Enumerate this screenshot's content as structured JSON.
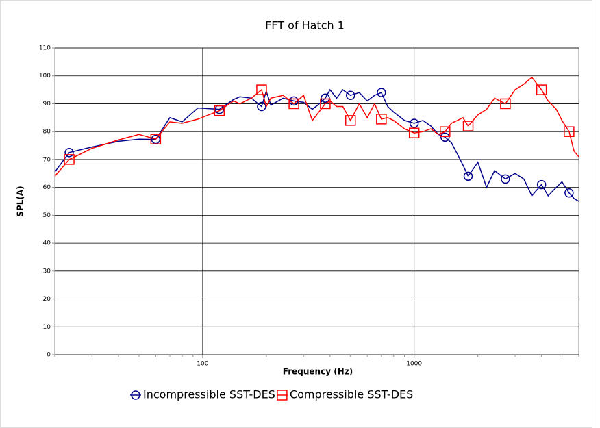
{
  "chart_data": {
    "type": "line",
    "title": "FFT of Hatch 1",
    "xlabel": "Frequency (Hz)",
    "ylabel": "SPL(A)",
    "xscale": "log",
    "x": [
      20,
      23.4,
      30,
      40,
      50,
      60,
      70,
      80,
      95,
      120,
      140,
      150,
      170,
      190,
      200,
      210,
      240,
      270,
      300,
      330,
      350,
      380,
      400,
      430,
      460,
      500,
      550,
      600,
      650,
      700,
      750,
      800,
      900,
      1000,
      1100,
      1200,
      1300,
      1400,
      1500,
      1600,
      1700,
      1800,
      2000,
      2200,
      2400,
      2700,
      3000,
      3300,
      3600,
      4000,
      4300,
      4700,
      5000,
      5400,
      5700,
      6000
    ],
    "series": [
      {
        "name": "Incompressible SST-DES",
        "color": "#00008b",
        "marker": "circle",
        "values": [
          65.5,
          72.5,
          74.5,
          76.5,
          77.3,
          77.2,
          85,
          83.5,
          88.5,
          88,
          91.5,
          92.5,
          92,
          89,
          94.5,
          89.5,
          92,
          91,
          90.5,
          88,
          89.5,
          92,
          95,
          92,
          95,
          93,
          94,
          91,
          93,
          94,
          89,
          87,
          84,
          83,
          84,
          82,
          79,
          78,
          76,
          72,
          68,
          64,
          69,
          60,
          66,
          63,
          65,
          63,
          57,
          61,
          57,
          60,
          62,
          58,
          56,
          55
        ]
      },
      {
        "name": "Compressible SST-DES",
        "color": "#ff0000",
        "marker": "square",
        "values": [
          64,
          70,
          74,
          77,
          79,
          77.3,
          83.5,
          83,
          84.5,
          87.5,
          91,
          90,
          92,
          95,
          89,
          92,
          93,
          90,
          93,
          84,
          86.5,
          90,
          91,
          89,
          89,
          84,
          90,
          85,
          90,
          84.5,
          85,
          84,
          81,
          79.5,
          80,
          81,
          79,
          80,
          83,
          84,
          85,
          82,
          86,
          88,
          92,
          90,
          95,
          97,
          99.5,
          95,
          91,
          88,
          84,
          80,
          73,
          71
        ]
      }
    ],
    "xlim": [
      20,
      6000
    ],
    "ylim": [
      0,
      110
    ],
    "xticks": [
      100,
      1000
    ],
    "xminorticks": [
      20,
      30,
      40,
      50,
      60,
      70,
      80,
      90,
      200,
      300,
      400,
      500,
      600,
      700,
      800,
      900,
      2000,
      3000,
      4000,
      5000,
      6000
    ],
    "yticks": [
      0,
      10,
      20,
      30,
      40,
      50,
      60,
      70,
      80,
      90,
      100,
      110
    ],
    "grid": true,
    "legend": "bottom"
  }
}
